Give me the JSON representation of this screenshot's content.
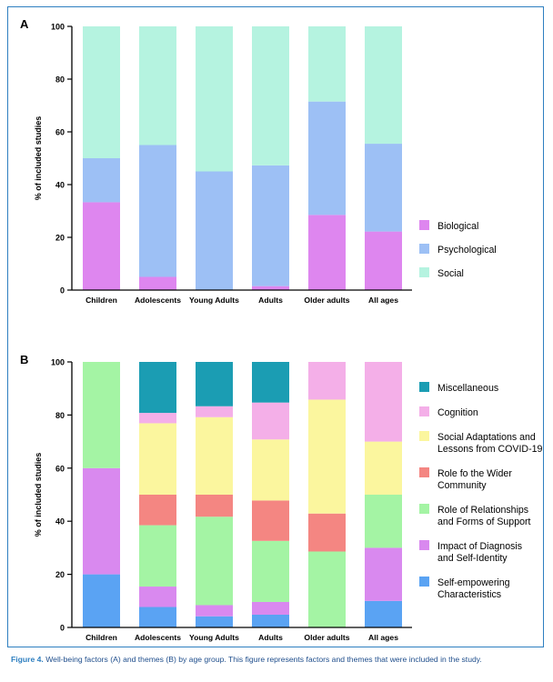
{
  "chart_data": [
    {
      "panel": "A",
      "type": "bar",
      "stacked": true,
      "ylabel": "% of included studies",
      "ylim": [
        0,
        100
      ],
      "yticks": [
        0,
        20,
        40,
        60,
        80,
        100
      ],
      "categories": [
        "Children",
        "Adolescents",
        "Young Adults",
        "Adults",
        "Older adults",
        "All ages"
      ],
      "series": [
        {
          "name": "Biological",
          "color": "#de86ef",
          "values": [
            33.3,
            5,
            0,
            1.5,
            28.5,
            22.2
          ]
        },
        {
          "name": "Psychological",
          "color": "#9dc0f5",
          "values": [
            16.7,
            50,
            45,
            45.8,
            43,
            33.3
          ]
        },
        {
          "name": "Social",
          "color": "#b5f3e0",
          "values": [
            50,
            45,
            55,
            52.7,
            28.5,
            44.5
          ]
        }
      ],
      "legend": "right"
    },
    {
      "panel": "B",
      "type": "bar",
      "stacked": true,
      "ylabel": "% of included studies",
      "ylim": [
        0,
        100
      ],
      "yticks": [
        0,
        20,
        40,
        60,
        80,
        100
      ],
      "categories": [
        "Children",
        "Adolescents",
        "Young Adults",
        "Adults",
        "Older adults",
        "All ages"
      ],
      "series": [
        {
          "name": "Self-empowering Characteristics",
          "color": "#5aa3f3",
          "values": [
            20,
            7.7,
            4.2,
            4.8,
            0,
            10
          ]
        },
        {
          "name": "Impact of Diagnosis and Self-Identity",
          "color": "#d989ef",
          "values": [
            40,
            7.7,
            4.2,
            4.8,
            0,
            20
          ]
        },
        {
          "name": "Role of Relationships and Forms of Support",
          "color": "#a4f4a4",
          "values": [
            40,
            23.1,
            33.3,
            23.0,
            28.6,
            20
          ]
        },
        {
          "name": "Role fo the Wider Community",
          "color": "#f48682",
          "values": [
            0,
            11.5,
            8.3,
            15.2,
            14.3,
            0
          ]
        },
        {
          "name": "Social Adaptations and Lessons from COVID-19",
          "color": "#fbf69e",
          "values": [
            0,
            26.9,
            29.2,
            23.0,
            42.9,
            20
          ]
        },
        {
          "name": "Cognition",
          "color": "#f4afe8",
          "values": [
            0,
            3.9,
            4.1,
            13.9,
            14.2,
            30
          ]
        },
        {
          "name": "Miscellaneous",
          "color": "#1b9db3",
          "values": [
            0,
            19.2,
            16.7,
            15.3,
            0,
            0
          ]
        }
      ],
      "legend": "right"
    }
  ],
  "caption": {
    "label": "Figure 4.",
    "text": "Well-being factors (A) and themes (B) by age group. This figure represents factors and themes that were included in the study."
  }
}
